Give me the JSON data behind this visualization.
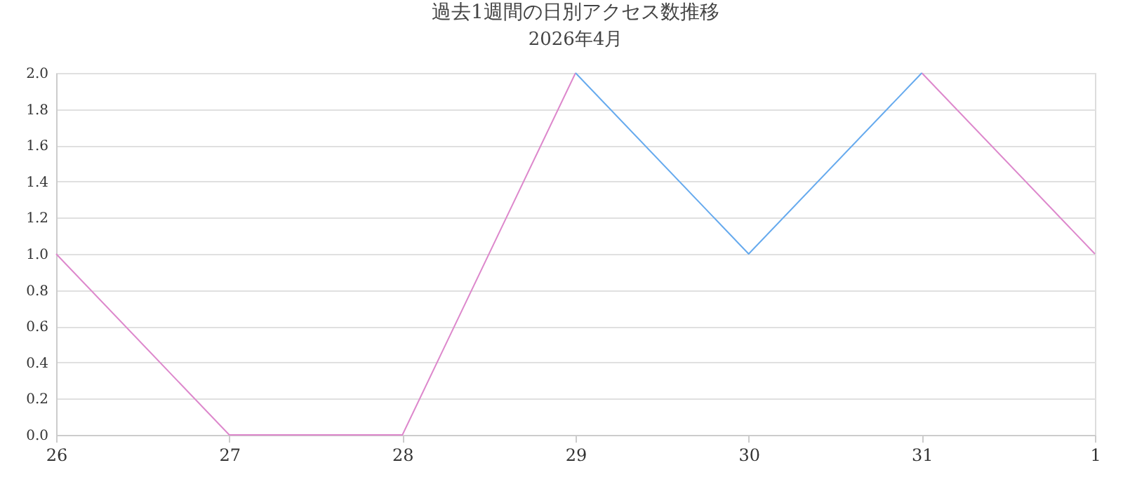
{
  "chart_data": {
    "type": "line",
    "title": "過去1週間の日別アクセス数推移",
    "subtitle": "2026年4月",
    "categories": [
      "26",
      "27",
      "28",
      "29",
      "30",
      "31",
      "1"
    ],
    "series": [
      {
        "color": "#dd88cc",
        "values": [
          1,
          0,
          0,
          2,
          null,
          2,
          1
        ]
      },
      {
        "color": "#66aaee",
        "values": [
          null,
          null,
          null,
          2,
          1,
          2,
          null
        ]
      }
    ],
    "ylim": [
      0,
      2
    ],
    "yticks": [
      {
        "value": 0,
        "label": "0.0"
      },
      {
        "value": 0.2,
        "label": "0.2"
      },
      {
        "value": 0.4,
        "label": "0.4"
      },
      {
        "value": 0.6,
        "label": "0.6"
      },
      {
        "value": 0.8,
        "label": "0.8"
      },
      {
        "value": 1,
        "label": "1.0"
      },
      {
        "value": 1.2,
        "label": "1.2"
      },
      {
        "value": 1.4,
        "label": "1.4"
      },
      {
        "value": 1.6,
        "label": "1.6"
      },
      {
        "value": 1.8,
        "label": "1.8"
      },
      {
        "value": 2,
        "label": "2.0"
      }
    ],
    "grid": "y",
    "marker": "none",
    "line_style": "solid"
  }
}
